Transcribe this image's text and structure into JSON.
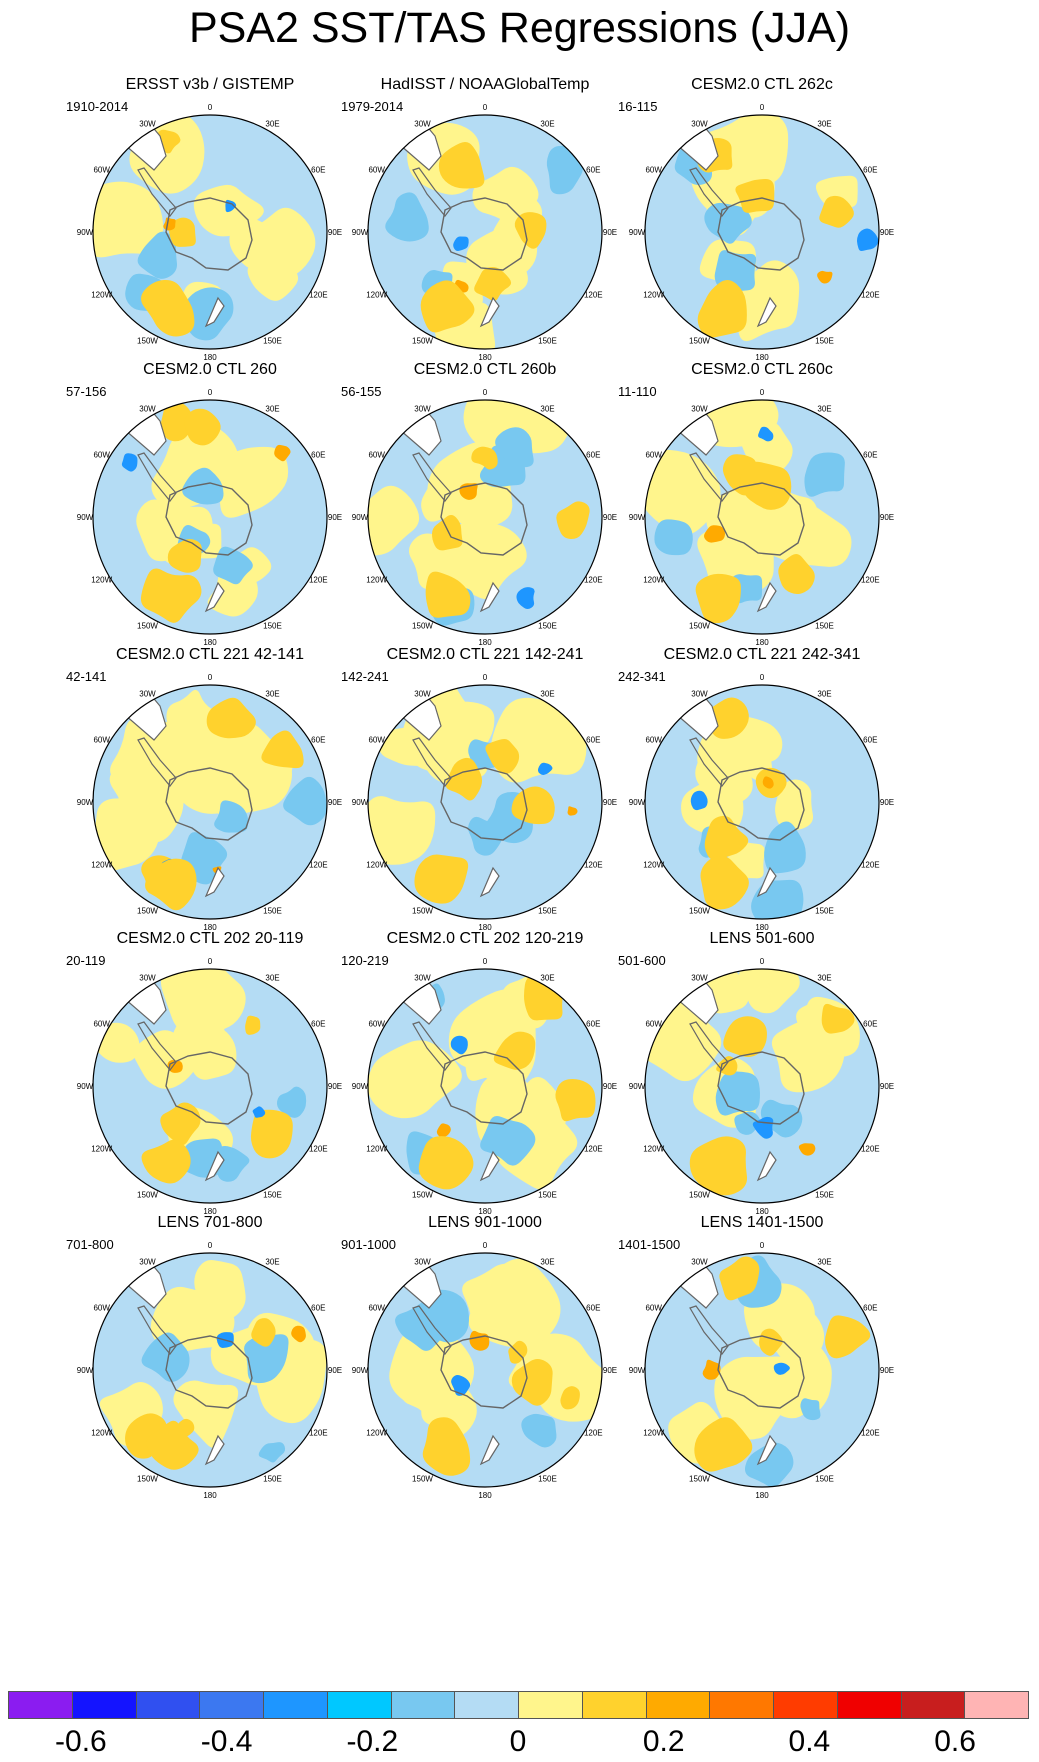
{
  "title": "PSA2 SST/TAS Regressions (JJA)",
  "chart_data": {
    "type": "heatmap",
    "title": "PSA2 SST/TAS Regressions (JJA)",
    "projection": "south polar stereographic",
    "longitude_labels": [
      "0",
      "30E",
      "60E",
      "90E",
      "120E",
      "150E",
      "180",
      "150W",
      "120W",
      "90W",
      "60W",
      "30W"
    ],
    "panels": [
      {
        "title": "ERSST v3b / GISTEMP",
        "years": "1910-2014"
      },
      {
        "title": "HadISST / NOAAGlobalTemp",
        "years": "1979-2014"
      },
      {
        "title": "CESM2.0 CTL 262c",
        "years": "16-115"
      },
      {
        "title": "CESM2.0 CTL 260",
        "years": "57-156"
      },
      {
        "title": "CESM2.0 CTL 260b",
        "years": "56-155"
      },
      {
        "title": "CESM2.0 CTL 260c",
        "years": "11-110"
      },
      {
        "title": "CESM2.0 CTL 221 42-141",
        "years": "42-141"
      },
      {
        "title": "CESM2.0 CTL 221 142-241",
        "years": "142-241"
      },
      {
        "title": "CESM2.0 CTL 221 242-341",
        "years": "242-341"
      },
      {
        "title": "CESM2.0 CTL 202 20-119",
        "years": "20-119"
      },
      {
        "title": "CESM2.0 CTL 202 120-219",
        "years": "120-219"
      },
      {
        "title": "LENS 501-600",
        "years": "501-600"
      },
      {
        "title": "LENS 701-800",
        "years": "701-800"
      },
      {
        "title": "LENS 901-1000",
        "years": "901-1000"
      },
      {
        "title": "LENS 1401-1500",
        "years": "1401-1500"
      }
    ],
    "colorbar": {
      "colors": [
        "#8b1cf0",
        "#1414ff",
        "#3050f0",
        "#3c78f0",
        "#1e96ff",
        "#00c8ff",
        "#78c8f0",
        "#b4dcf4",
        "#fff58c",
        "#ffd22d",
        "#ffaa00",
        "#ff7800",
        "#ff3c00",
        "#f00000",
        "#c81e1e",
        "#ffb4b4"
      ],
      "labels": [
        "-0.6",
        "-0.4",
        "-0.2",
        "0",
        "0.2",
        "0.4",
        "0.6"
      ],
      "label_values": [
        -0.6,
        -0.4,
        -0.2,
        0,
        0.2,
        0.4,
        0.6
      ],
      "range": [
        -0.7,
        0.7
      ],
      "step": 0.1
    },
    "land_color": "#ffffff",
    "coast_color": "#666666"
  }
}
